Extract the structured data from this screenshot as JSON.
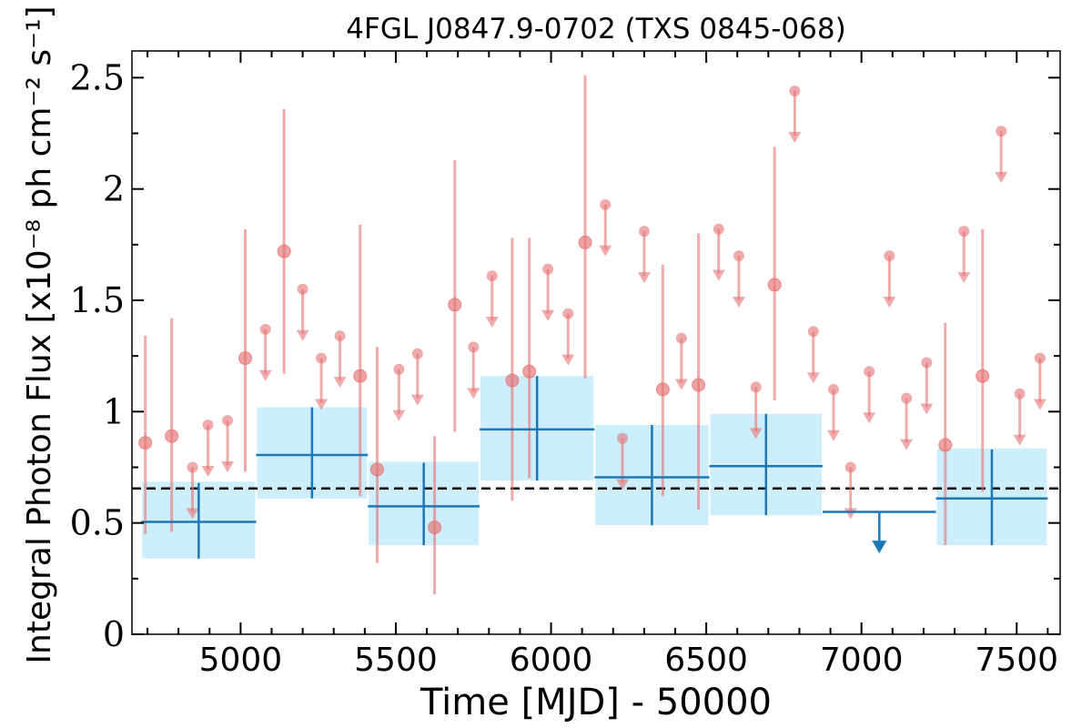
{
  "chart_data": {
    "type": "scatter",
    "title": "4FGL J0847.9-0702 (TXS 0845-068)",
    "xlabel": "Time [MJD] - 50000",
    "ylabel": "Integral Photon Flux [x10⁻⁸ ph cm⁻² s⁻¹]",
    "xlim": [
      4650,
      7640
    ],
    "ylim": [
      0,
      2.62
    ],
    "x_ticks": [
      5000,
      5500,
      6000,
      6500,
      7000,
      7500
    ],
    "x_tick_labels": [
      "5000",
      "5500",
      "6000",
      "6500",
      "7000",
      "7500"
    ],
    "y_ticks": [
      0,
      0.5,
      1,
      1.5,
      2,
      2.5
    ],
    "y_tick_labels": [
      "0",
      "0.5",
      "1",
      "1.5",
      "2",
      "2.5"
    ],
    "average_flux": 0.655,
    "grid": false,
    "colors": {
      "short_bins": "#e57373",
      "long_bins": "#1f77b4",
      "long_bins_band": "#cdeefc",
      "average_line": "#000000"
    },
    "series": [
      {
        "points": [
          {
            "x": 4693,
            "y": 0.86,
            "ylo": 0.45,
            "yhi": 1.34
          },
          {
            "x": 4778,
            "y": 0.89,
            "ylo": 0.46,
            "yhi": 1.42
          },
          {
            "x": 5015,
            "y": 1.24,
            "ylo": 0.73,
            "yhi": 1.82
          },
          {
            "x": 5140,
            "y": 1.72,
            "ylo": 1.17,
            "yhi": 2.36
          },
          {
            "x": 5385,
            "y": 1.16,
            "ylo": 0.62,
            "yhi": 1.84
          },
          {
            "x": 5440,
            "y": 0.74,
            "ylo": 0.32,
            "yhi": 1.29
          },
          {
            "x": 5625,
            "y": 0.48,
            "ylo": 0.18,
            "yhi": 0.89
          },
          {
            "x": 5690,
            "y": 1.48,
            "ylo": 0.91,
            "yhi": 2.13
          },
          {
            "x": 5875,
            "y": 1.14,
            "ylo": 0.6,
            "yhi": 1.78
          },
          {
            "x": 5930,
            "y": 1.18,
            "ylo": 0.7,
            "yhi": 1.78
          },
          {
            "x": 6110,
            "y": 1.76,
            "ylo": 1.15,
            "yhi": 2.51
          },
          {
            "x": 6360,
            "y": 1.1,
            "ylo": 0.62,
            "yhi": 1.66
          },
          {
            "x": 6475,
            "y": 1.12,
            "ylo": 0.56,
            "yhi": 1.8
          },
          {
            "x": 6720,
            "y": 1.57,
            "ylo": 1.05,
            "yhi": 2.19
          },
          {
            "x": 7270,
            "y": 0.85,
            "ylo": 0.4,
            "yhi": 1.4
          },
          {
            "x": 7390,
            "y": 1.16,
            "ylo": 0.64,
            "yhi": 1.82
          }
        ],
        "upper_limits": [
          {
            "x": 4845,
            "y": 0.75
          },
          {
            "x": 4895,
            "y": 0.94
          },
          {
            "x": 4958,
            "y": 0.96
          },
          {
            "x": 5080,
            "y": 1.37
          },
          {
            "x": 5200,
            "y": 1.55
          },
          {
            "x": 5260,
            "y": 1.24
          },
          {
            "x": 5320,
            "y": 1.34
          },
          {
            "x": 5510,
            "y": 1.19
          },
          {
            "x": 5570,
            "y": 1.26
          },
          {
            "x": 5750,
            "y": 1.29
          },
          {
            "x": 5810,
            "y": 1.61
          },
          {
            "x": 5990,
            "y": 1.64
          },
          {
            "x": 6055,
            "y": 1.44
          },
          {
            "x": 6175,
            "y": 1.93
          },
          {
            "x": 6230,
            "y": 0.88
          },
          {
            "x": 6300,
            "y": 1.81
          },
          {
            "x": 6420,
            "y": 1.33
          },
          {
            "x": 6540,
            "y": 1.82
          },
          {
            "x": 6605,
            "y": 1.7
          },
          {
            "x": 6660,
            "y": 1.11
          },
          {
            "x": 6785,
            "y": 2.44
          },
          {
            "x": 6845,
            "y": 1.36
          },
          {
            "x": 6910,
            "y": 1.1
          },
          {
            "x": 6965,
            "y": 0.75
          },
          {
            "x": 7025,
            "y": 1.18
          },
          {
            "x": 7090,
            "y": 1.7
          },
          {
            "x": 7145,
            "y": 1.06
          },
          {
            "x": 7210,
            "y": 1.22
          },
          {
            "x": 7330,
            "y": 1.81
          },
          {
            "x": 7450,
            "y": 2.26
          },
          {
            "x": 7510,
            "y": 1.08
          },
          {
            "x": 7575,
            "y": 1.24
          }
        ]
      },
      {
        "bins": [
          {
            "x0": 4680,
            "x1": 5050,
            "y": 0.505,
            "ylo": 0.34,
            "yhi": 0.68,
            "band_lo": 0.34,
            "band_hi": 0.685
          },
          {
            "x0": 5050,
            "x1": 5410,
            "y": 0.805,
            "ylo": 0.61,
            "yhi": 1.02,
            "band_lo": 0.61,
            "band_hi": 1.02
          },
          {
            "x0": 5410,
            "x1": 5770,
            "y": 0.575,
            "ylo": 0.4,
            "yhi": 0.77,
            "band_lo": 0.4,
            "band_hi": 0.775
          },
          {
            "x0": 5770,
            "x1": 6140,
            "y": 0.92,
            "ylo": 0.69,
            "yhi": 1.16,
            "band_lo": 0.69,
            "band_hi": 1.16
          },
          {
            "x0": 6140,
            "x1": 6510,
            "y": 0.705,
            "ylo": 0.49,
            "yhi": 0.94,
            "band_lo": 0.49,
            "band_hi": 0.94
          },
          {
            "x0": 6510,
            "x1": 6875,
            "y": 0.755,
            "ylo": 0.535,
            "yhi": 0.99,
            "band_lo": 0.535,
            "band_hi": 0.99
          },
          {
            "x0": 7240,
            "x1": 7600,
            "y": 0.61,
            "ylo": 0.4,
            "yhi": 0.83,
            "band_lo": 0.4,
            "band_hi": 0.835
          }
        ],
        "upper_limits": [
          {
            "x0": 6875,
            "x1": 7240,
            "y": 0.55
          }
        ]
      }
    ]
  }
}
